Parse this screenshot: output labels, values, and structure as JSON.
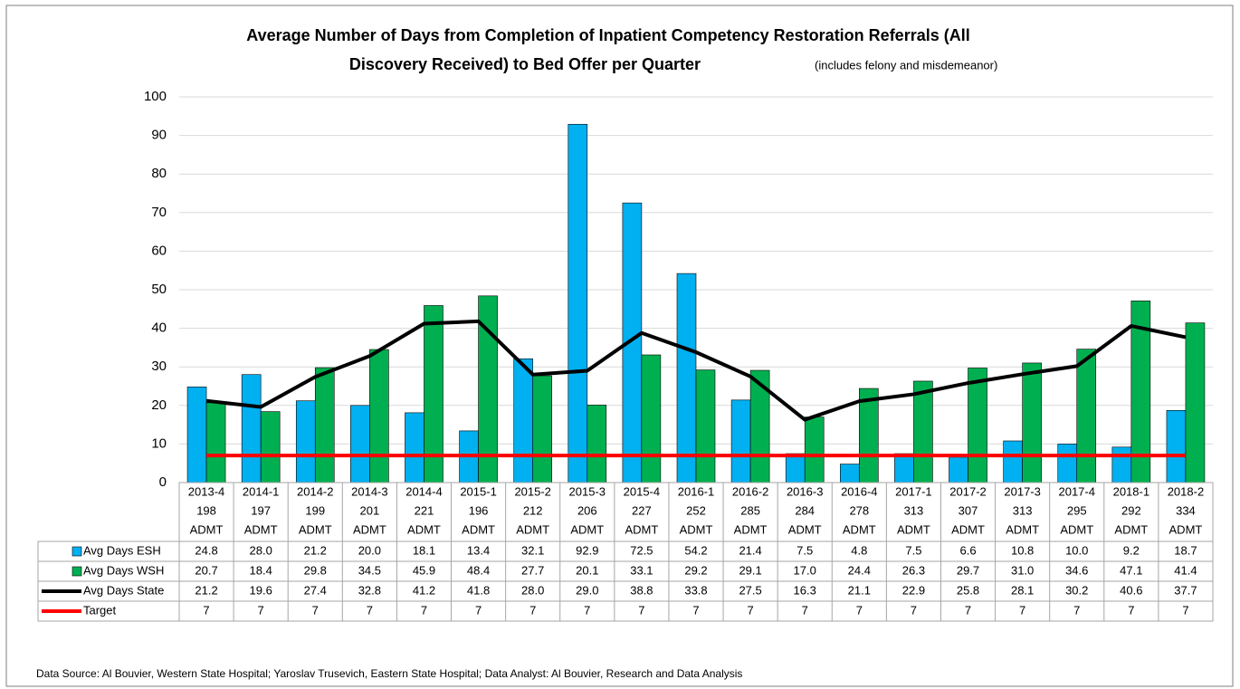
{
  "chart_data": {
    "type": "bar",
    "title": "Average Number of Days from Completion of Inpatient Competency Restoration Referrals (All",
    "title_line2": "Discovery Received) to Bed Offer per Quarter",
    "subtitle": "(includes felony and misdemeanor)",
    "categories": [
      [
        "2013-4",
        "198",
        "ADMT"
      ],
      [
        "2014-1",
        "197",
        "ADMT"
      ],
      [
        "2014-2",
        "199",
        "ADMT"
      ],
      [
        "2014-3",
        "201",
        "ADMT"
      ],
      [
        "2014-4",
        "221",
        "ADMT"
      ],
      [
        "2015-1",
        "196",
        "ADMT"
      ],
      [
        "2015-2",
        "212",
        "ADMT"
      ],
      [
        "2015-3",
        "206",
        "ADMT"
      ],
      [
        "2015-4",
        "227",
        "ADMT"
      ],
      [
        "2016-1",
        "252",
        "ADMT"
      ],
      [
        "2016-2",
        "285",
        "ADMT"
      ],
      [
        "2016-3",
        "284",
        "ADMT"
      ],
      [
        "2016-4",
        "278",
        "ADMT"
      ],
      [
        "2017-1",
        "313",
        "ADMT"
      ],
      [
        "2017-2",
        "307",
        "ADMT"
      ],
      [
        "2017-3",
        "313",
        "ADMT"
      ],
      [
        "2017-4",
        "295",
        "ADMT"
      ],
      [
        "2018-1",
        "292",
        "ADMT"
      ],
      [
        "2018-2",
        "334",
        "ADMT"
      ]
    ],
    "series": [
      {
        "name": "Avg Days ESH",
        "color": "#00b0f0",
        "kind": "bar",
        "values": [
          24.8,
          28.0,
          21.2,
          20.0,
          18.1,
          13.4,
          32.1,
          92.9,
          72.5,
          54.2,
          21.4,
          7.5,
          4.8,
          7.5,
          6.6,
          10.8,
          10.0,
          9.2,
          18.7
        ],
        "value_labels": [
          "24.8",
          "28.0",
          "21.2",
          "20.0",
          "18.1",
          "13.4",
          "32.1",
          "92.9",
          "72.5",
          "54.2",
          "21.4",
          "7.5",
          "4.8",
          "7.5",
          "6.6",
          "10.8",
          "10.0",
          "9.2",
          "18.7"
        ]
      },
      {
        "name": "Avg Days WSH",
        "color": "#00b050",
        "kind": "bar",
        "values": [
          20.7,
          18.4,
          29.8,
          34.5,
          45.9,
          48.4,
          27.7,
          20.1,
          33.1,
          29.2,
          29.1,
          17.0,
          24.4,
          26.3,
          29.7,
          31.0,
          34.6,
          47.1,
          41.4
        ],
        "value_labels": [
          "20.7",
          "18.4",
          "29.8",
          "34.5",
          "45.9",
          "48.4",
          "27.7",
          "20.1",
          "33.1",
          "29.2",
          "29.1",
          "17.0",
          "24.4",
          "26.3",
          "29.7",
          "31.0",
          "34.6",
          "47.1",
          "41.4"
        ]
      },
      {
        "name": "Avg Days State",
        "color": "#000000",
        "kind": "line",
        "values": [
          21.2,
          19.6,
          27.4,
          32.8,
          41.2,
          41.8,
          28.0,
          29.0,
          38.8,
          33.8,
          27.5,
          16.3,
          21.1,
          22.9,
          25.8,
          28.1,
          30.2,
          40.6,
          37.7
        ],
        "value_labels": [
          "21.2",
          "19.6",
          "27.4",
          "32.8",
          "41.2",
          "41.8",
          "28.0",
          "29.0",
          "38.8",
          "33.8",
          "27.5",
          "16.3",
          "21.1",
          "22.9",
          "25.8",
          "28.1",
          "30.2",
          "40.6",
          "37.7"
        ]
      },
      {
        "name": "Target",
        "color": "#ff0000",
        "kind": "line",
        "values": [
          7,
          7,
          7,
          7,
          7,
          7,
          7,
          7,
          7,
          7,
          7,
          7,
          7,
          7,
          7,
          7,
          7,
          7,
          7
        ]
      }
    ],
    "ylim": [
      0,
      100
    ],
    "yticks": [
      0,
      10,
      20,
      30,
      40,
      50,
      60,
      70,
      80,
      90,
      100
    ],
    "grid": true,
    "source": "Data Source: Al Bouvier, Western State Hospital; Yaroslav Trusevich, Eastern State Hospital; Data Analyst: Al Bouvier, Research and Data Analysis"
  }
}
